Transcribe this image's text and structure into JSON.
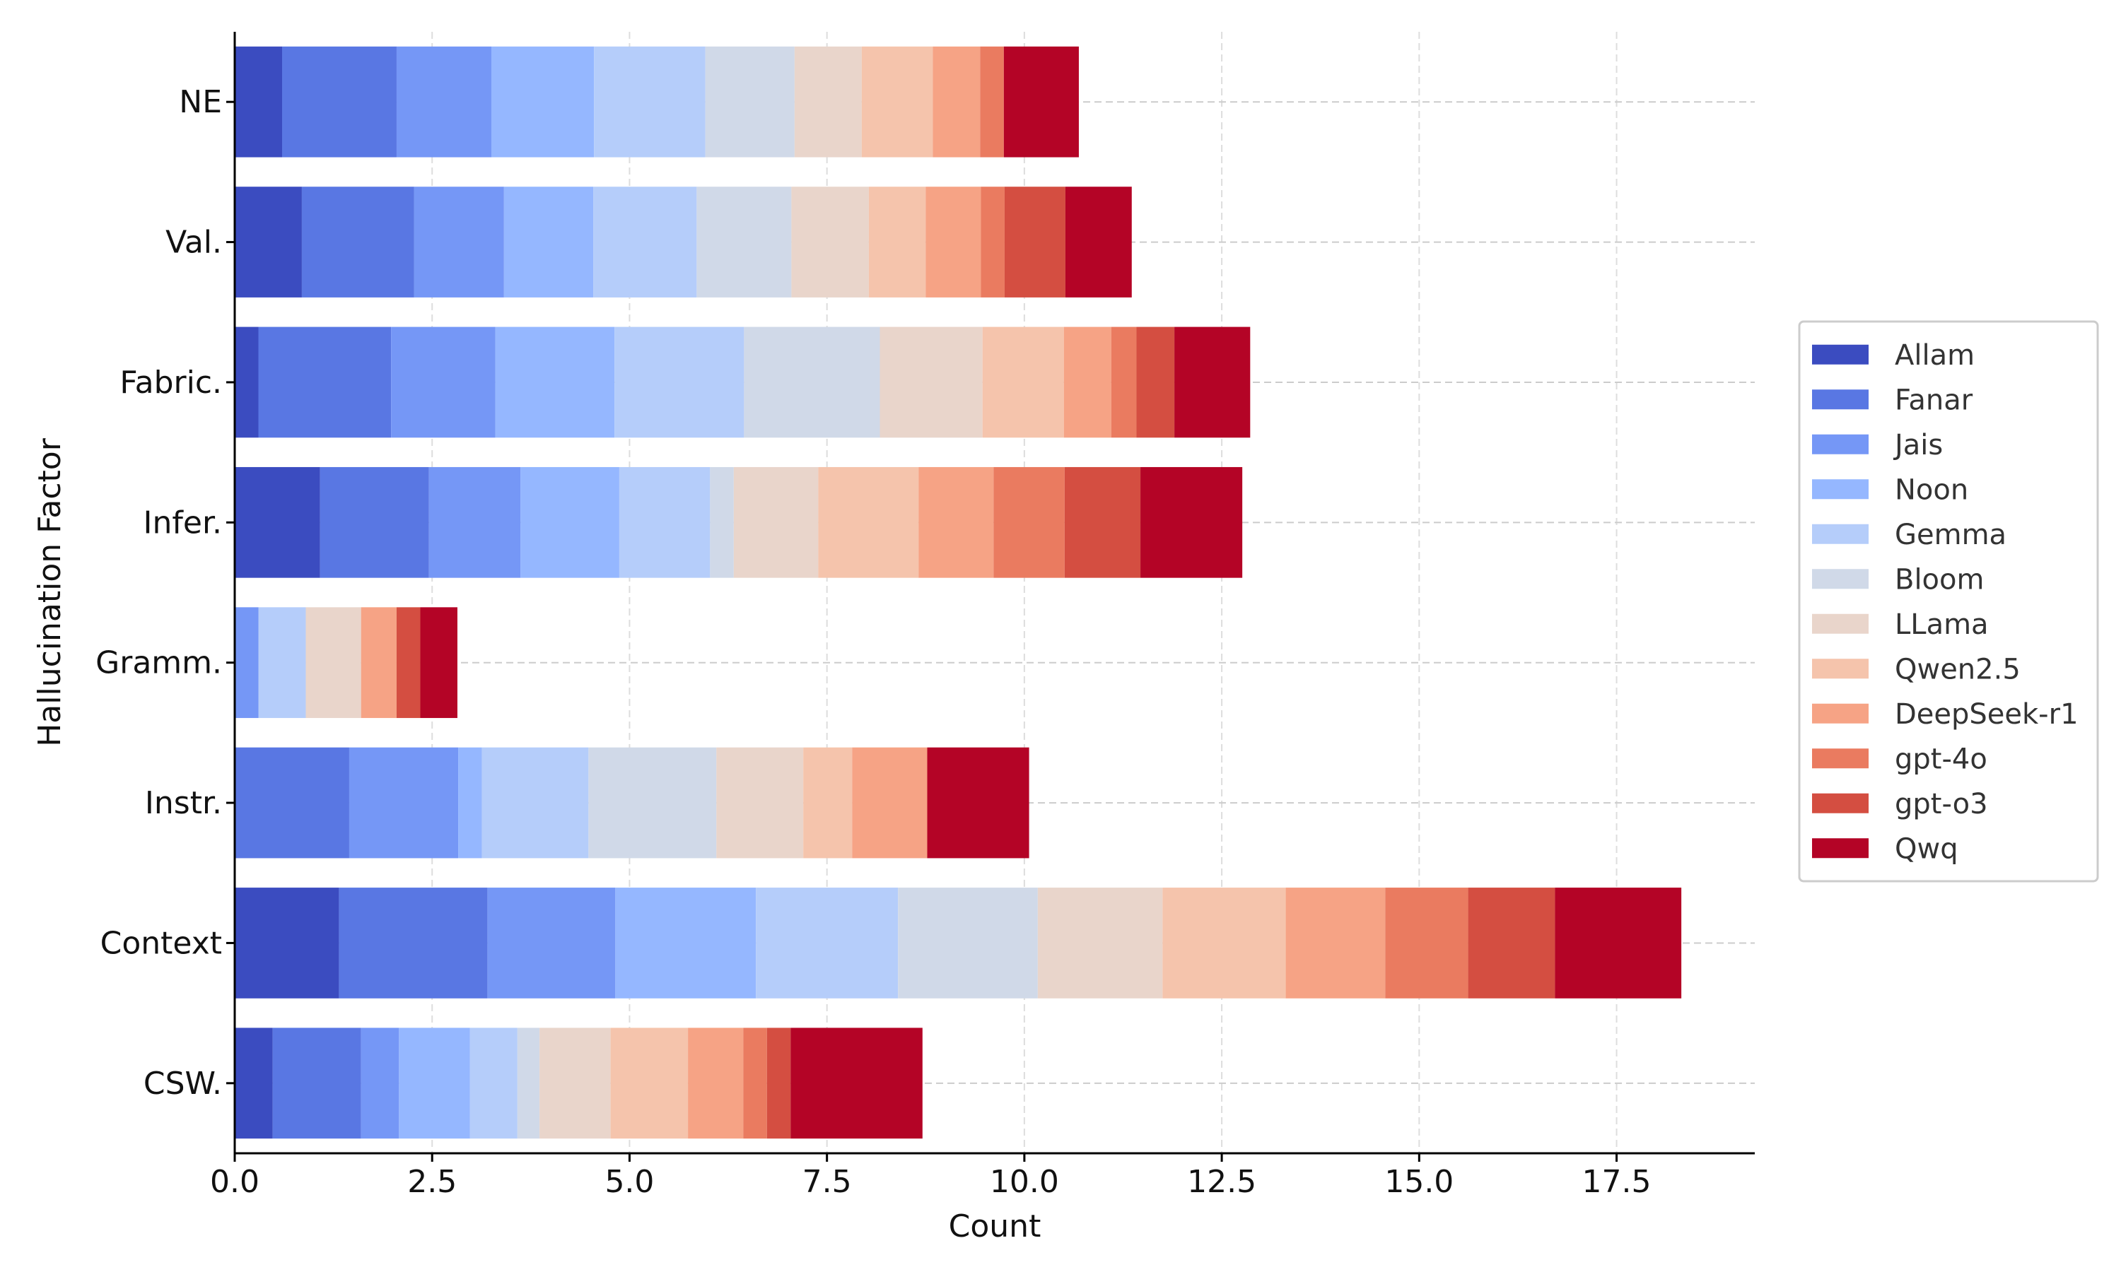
{
  "chart_data": {
    "type": "bar",
    "orientation": "horizontal",
    "stacked": true,
    "title": "",
    "xlabel": "Count",
    "ylabel": "Hallucination Factor",
    "xlim": [
      0,
      19.25
    ],
    "xticks": [
      0.0,
      2.5,
      5.0,
      7.5,
      10.0,
      12.5,
      15.0,
      17.5
    ],
    "xtick_labels": [
      "0.0",
      "2.5",
      "5.0",
      "7.5",
      "10.0",
      "12.5",
      "15.0",
      "17.5"
    ],
    "grid": true,
    "legend_position": "right",
    "categories": [
      "NE",
      "Val.",
      "Fabric.",
      "Infer.",
      "Gramm.",
      "Instr.",
      "Context",
      "CSW."
    ],
    "series": [
      {
        "name": "Allam",
        "color": "#3b4cc0",
        "values": [
          0.6,
          0.85,
          0.3,
          1.08,
          0.0,
          0.0,
          1.32,
          0.48
        ]
      },
      {
        "name": "Fanar",
        "color": "#5977e3",
        "values": [
          1.45,
          1.42,
          1.68,
          1.38,
          0.0,
          1.45,
          1.88,
          1.12
        ]
      },
      {
        "name": "Jais",
        "color": "#7597f6",
        "values": [
          1.2,
          1.14,
          1.32,
          1.16,
          0.3,
          1.38,
          1.62,
          0.48
        ]
      },
      {
        "name": "Noon",
        "color": "#95b7ff",
        "values": [
          1.3,
          1.13,
          1.51,
          1.25,
          0.0,
          0.3,
          1.78,
          0.9
        ]
      },
      {
        "name": "Gemma",
        "color": "#b5cdfa",
        "values": [
          1.41,
          1.31,
          1.64,
          1.15,
          0.6,
          1.35,
          1.8,
          0.6
        ]
      },
      {
        "name": "Bloom",
        "color": "#d0d9e8",
        "values": [
          1.13,
          1.2,
          1.72,
          0.3,
          0.0,
          1.62,
          1.77,
          0.28
        ]
      },
      {
        "name": "LLama",
        "color": "#e9d5cb",
        "values": [
          0.85,
          0.98,
          1.3,
          1.07,
          0.7,
          1.1,
          1.58,
          0.9
        ]
      },
      {
        "name": "Qwen2.5",
        "color": "#f5c4ac",
        "values": [
          0.9,
          0.72,
          1.03,
          1.27,
          0.0,
          0.62,
          1.56,
          0.98
        ]
      },
      {
        "name": "DeepSeek-r1",
        "color": "#f6a385",
        "values": [
          0.6,
          0.7,
          0.6,
          0.95,
          0.45,
          0.95,
          1.26,
          0.7
        ]
      },
      {
        "name": "gpt-4o",
        "color": "#ea7b60",
        "values": [
          0.3,
          0.3,
          0.32,
          0.9,
          0.0,
          0.0,
          1.05,
          0.3
        ]
      },
      {
        "name": "gpt-o3",
        "color": "#d44e41",
        "values": [
          0.0,
          0.77,
          0.48,
          0.96,
          0.3,
          0.0,
          1.1,
          0.3
        ]
      },
      {
        "name": "Qwq",
        "color": "#b40426",
        "values": [
          0.95,
          0.84,
          0.96,
          1.29,
          0.47,
          1.29,
          1.6,
          1.67
        ]
      }
    ]
  }
}
